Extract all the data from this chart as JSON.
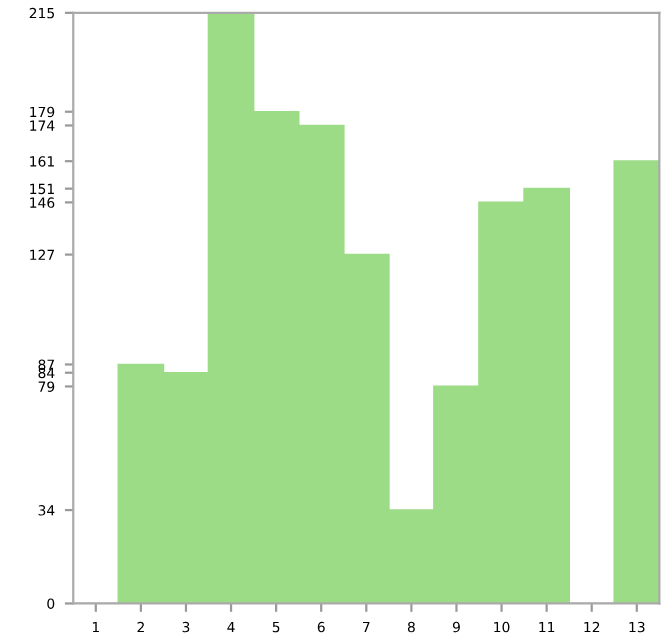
{
  "chart_data": {
    "type": "bar",
    "categories": [
      "1",
      "2",
      "3",
      "4",
      "5",
      "6",
      "7",
      "8",
      "9",
      "10",
      "11",
      "12",
      "13"
    ],
    "values": [
      0,
      87,
      84,
      215,
      179,
      174,
      127,
      34,
      79,
      146,
      151,
      0,
      161
    ],
    "color": "#9ddc87",
    "ylim": [
      0,
      215
    ],
    "yticks": [
      0,
      34,
      79,
      84,
      87,
      127,
      146,
      151,
      161,
      174,
      179,
      215
    ],
    "grid": false
  }
}
